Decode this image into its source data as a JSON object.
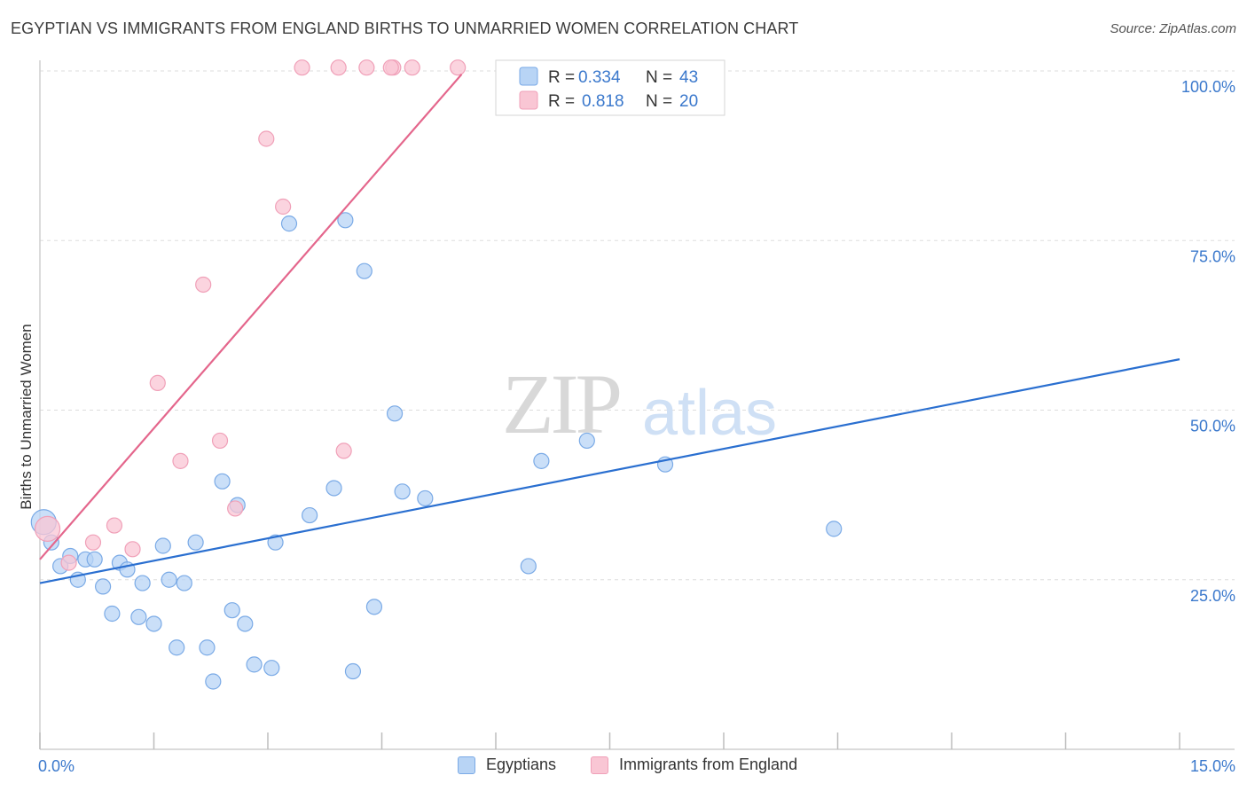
{
  "title": "EGYPTIAN VS IMMIGRANTS FROM ENGLAND BIRTHS TO UNMARRIED WOMEN CORRELATION CHART",
  "source": "Source: ZipAtlas.com",
  "watermark": {
    "zip": "ZIP",
    "atlas": "atlas"
  },
  "legend_stats": [
    {
      "r_label": "R =",
      "r_value": "0.334",
      "n_label": "N =",
      "n_value": "43"
    },
    {
      "r_label": "R =",
      "r_value": "0.818",
      "n_label": "N =",
      "n_value": "20"
    }
  ],
  "colors": {
    "blue_fill": "#b8d4f5",
    "blue_stroke": "#7aaae6",
    "blue_line": "#2a6fd0",
    "pink_fill": "#f9c6d4",
    "pink_stroke": "#f0a0b8",
    "pink_line": "#e4668c",
    "tick_label": "#3a78cc",
    "grid": "#dddddd"
  },
  "chart_data": {
    "type": "scatter",
    "xlabel": "",
    "ylabel": "Births to Unmarried Women",
    "xlim": [
      0,
      15
    ],
    "ylim": [
      0,
      104
    ],
    "x_tick_labels": [
      {
        "value": 0,
        "label": "0.0%"
      },
      {
        "value": 15,
        "label": "15.0%"
      }
    ],
    "x_minor_ticks": [
      0,
      1.5,
      3,
      4.5,
      6,
      7.5,
      9,
      10.5,
      12,
      13.5,
      15
    ],
    "y_ticks": [
      {
        "value": 25,
        "label": "25.0%"
      },
      {
        "value": 50,
        "label": "50.0%"
      },
      {
        "value": 75,
        "label": "75.0%"
      },
      {
        "value": 100,
        "label": "100.0%"
      }
    ],
    "series": [
      {
        "name": "Egyptians",
        "color": "#b8d4f5",
        "r": 0.334,
        "n": 43,
        "trend": {
          "x": [
            0,
            15
          ],
          "y": [
            24.5,
            57.5
          ]
        },
        "points": [
          [
            0.05,
            33.5
          ],
          [
            0.15,
            30.5
          ],
          [
            0.27,
            27
          ],
          [
            0.4,
            28.5
          ],
          [
            0.5,
            25
          ],
          [
            0.6,
            28
          ],
          [
            0.72,
            28
          ],
          [
            0.83,
            24
          ],
          [
            0.95,
            20
          ],
          [
            1.05,
            27.5
          ],
          [
            1.15,
            26.5
          ],
          [
            1.3,
            19.5
          ],
          [
            1.35,
            24.5
          ],
          [
            1.5,
            18.5
          ],
          [
            1.62,
            30
          ],
          [
            1.7,
            25
          ],
          [
            1.8,
            15
          ],
          [
            1.9,
            24.5
          ],
          [
            2.05,
            30.5
          ],
          [
            2.2,
            15
          ],
          [
            2.28,
            10
          ],
          [
            2.4,
            39.5
          ],
          [
            2.53,
            20.5
          ],
          [
            2.6,
            36
          ],
          [
            2.7,
            18.5
          ],
          [
            2.82,
            12.5
          ],
          [
            3.05,
            12
          ],
          [
            3.1,
            30.5
          ],
          [
            3.28,
            77.5
          ],
          [
            3.55,
            34.5
          ],
          [
            3.87,
            38.5
          ],
          [
            4.02,
            78
          ],
          [
            4.12,
            11.5
          ],
          [
            4.27,
            70.5
          ],
          [
            4.4,
            21
          ],
          [
            4.67,
            49.5
          ],
          [
            4.77,
            38
          ],
          [
            5.07,
            37
          ],
          [
            6.43,
            27
          ],
          [
            6.6,
            42.5
          ],
          [
            7.2,
            45.5
          ],
          [
            8.23,
            42
          ],
          [
            10.45,
            32.5
          ]
        ]
      },
      {
        "name": "Immigrants from England",
        "color": "#f9c6d4",
        "r": 0.818,
        "n": 20,
        "trend": {
          "x": [
            0,
            5.55
          ],
          "y": [
            28,
            99.5
          ]
        },
        "points": [
          [
            0.1,
            32.5
          ],
          [
            0.38,
            27.5
          ],
          [
            0.7,
            30.5
          ],
          [
            0.98,
            33
          ],
          [
            1.22,
            29.5
          ],
          [
            1.55,
            54
          ],
          [
            1.85,
            42.5
          ],
          [
            2.15,
            68.5
          ],
          [
            2.37,
            45.5
          ],
          [
            2.57,
            35.5
          ],
          [
            2.98,
            90
          ],
          [
            3.2,
            80
          ],
          [
            3.45,
            100.5
          ],
          [
            4.0,
            44
          ],
          [
            3.93,
            100.5
          ],
          [
            4.3,
            100.5
          ],
          [
            4.65,
            100.5
          ],
          [
            4.9,
            100.5
          ],
          [
            5.5,
            100.5
          ],
          [
            4.62,
            100.5
          ]
        ]
      }
    ]
  }
}
